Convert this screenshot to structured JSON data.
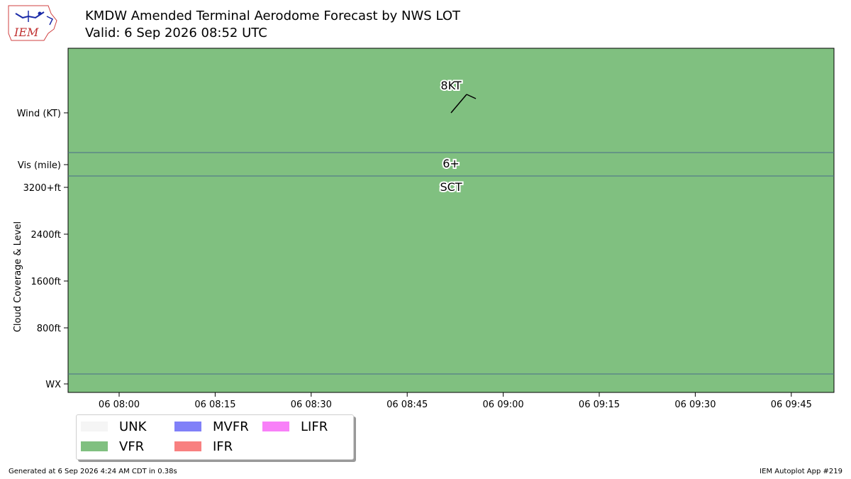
{
  "header": {
    "logo_text": "IEM",
    "title": "KMDW Amended Terminal Aerodome Forecast by NWS LOT",
    "subtitle": "Valid: 6 Sep 2026 08:52 UTC"
  },
  "chart_data": {
    "type": "area",
    "x_axis": {
      "tick_labels": [
        "06 08:00",
        "06 08:15",
        "06 08:30",
        "06 08:45",
        "06 09:00",
        "06 09:15",
        "06 09:30",
        "06 09:45"
      ]
    },
    "y_axis": {
      "side_label": "Cloud Coverage & Level",
      "tick_labels": [
        "Wind (KT)",
        "Vis (mile)",
        "3200+ft",
        "2400ft",
        "1600ft",
        "800ft",
        "WX"
      ]
    },
    "series": [
      {
        "name": "VFR",
        "start": "06 08:00",
        "end": "06 09:45",
        "category": "VFR"
      }
    ],
    "forecast_points": [
      {
        "time": "06 08:52",
        "wind_label": "8KT",
        "wind_speed_kt": 8,
        "vis_label": "6+",
        "cloud_label": "SCT"
      }
    ],
    "legend": {
      "placement": "bottom-left",
      "entries": [
        {
          "name": "UNK",
          "color": "#f5f5f5"
        },
        {
          "name": "VFR",
          "color": "#80c080"
        },
        {
          "name": "MVFR",
          "color": "#8080f8"
        },
        {
          "name": "IFR",
          "color": "#f88080"
        },
        {
          "name": "LIFR",
          "color": "#f880f8"
        }
      ]
    },
    "colors": {
      "vfr_fill": "#80c080",
      "lane_divider": "#4a6b8a"
    }
  },
  "footer": {
    "left": "Generated at 6 Sep 2026 4:24 AM CDT in 0.38s",
    "right": "IEM Autoplot App #219"
  }
}
